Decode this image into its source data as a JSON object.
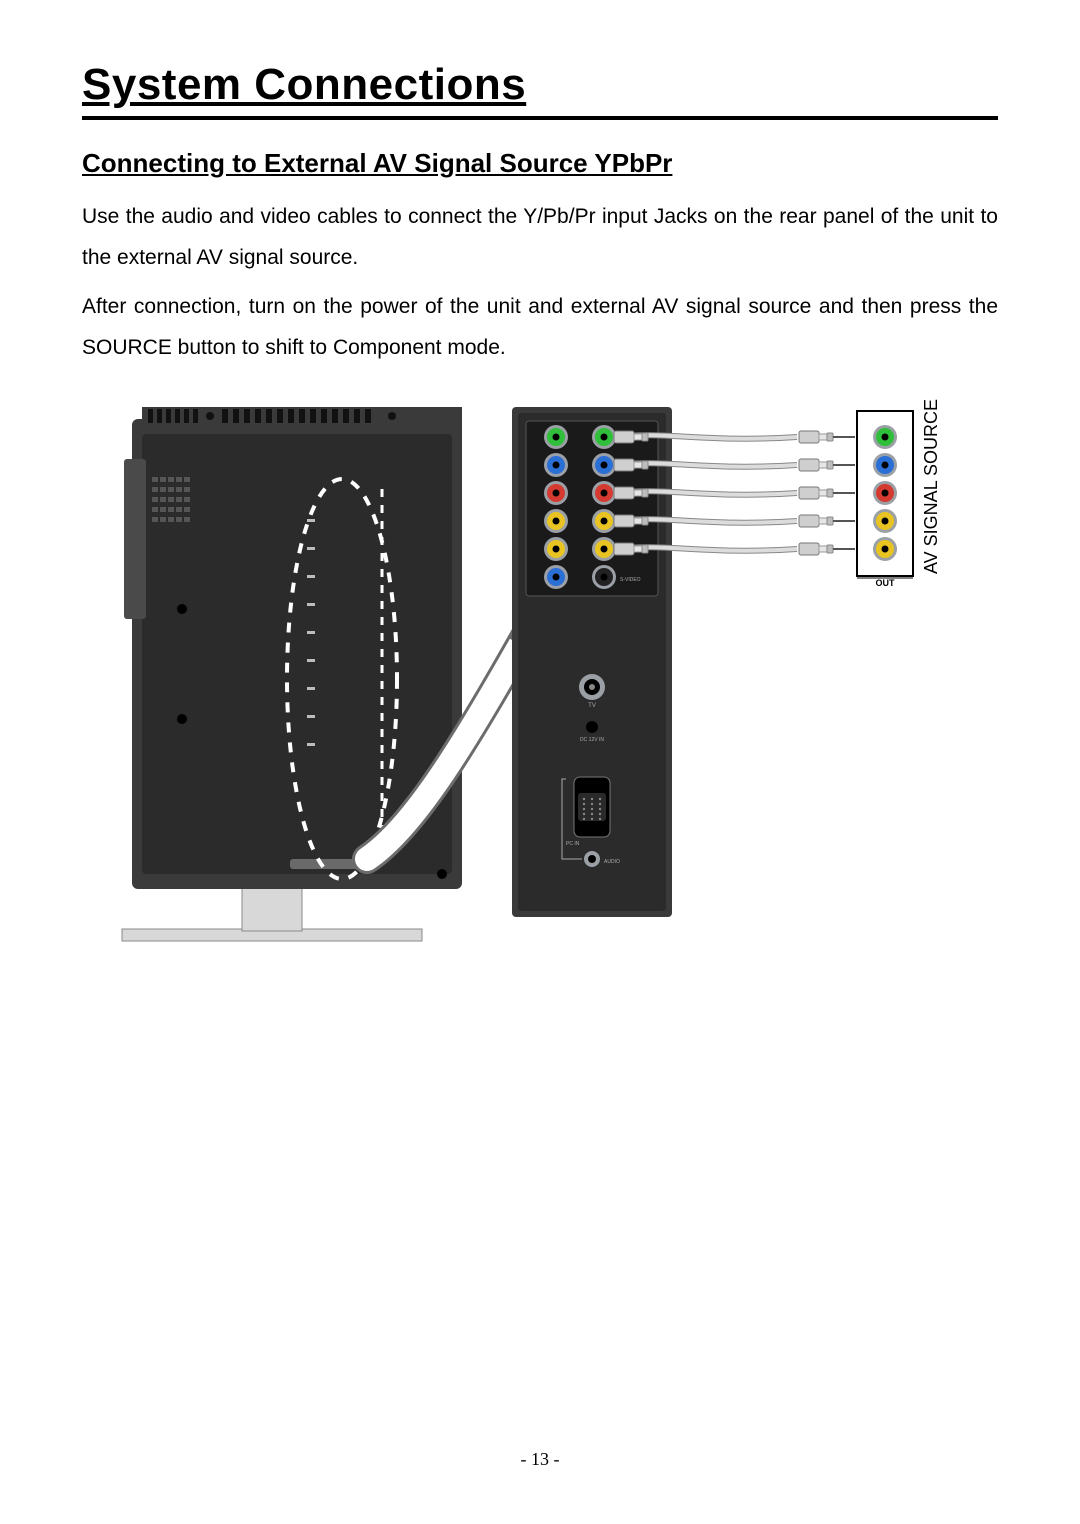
{
  "title": "System Connections",
  "subtitle": "Connecting to External AV Signal Source  YPbPr",
  "para1": "Use the audio and video cables to connect the Y/Pb/Pr input Jacks on the rear panel of the unit to the external AV signal source.",
  "para2": "After connection, turn on the power of the unit and external AV signal source and then press the SOURCE button to shift to Component mode.",
  "page_number": "- 13 -",
  "diagram": {
    "source_box_label": "AV SIGNAL SOURCE",
    "source_sub_label": "OUT",
    "tv_label": "TV",
    "dc_label": "DC 12V IN",
    "pc_label": "PC IN",
    "audio_label": "AUDIO",
    "svideo_label": "S-VIDEO",
    "colors": {
      "panel_dark": "#3a3a3a",
      "panel_darker": "#2b2b2b",
      "panel_black": "#1a1a1a",
      "bezel": "#4a4a4a",
      "stand": "#d8d8d8",
      "stand_edge": "#8a8a8a",
      "vent": "#111111",
      "jack_ring": "#9aa0a6",
      "jack_green": "#2fbf3a",
      "jack_blue": "#2a6fd6",
      "jack_red": "#d43a2f",
      "jack_yellow": "#e8c321",
      "jack_white": "#e8e8e8",
      "jack_black": "#222222",
      "cable_white": "#dcdcdc",
      "cable_edge": "#888888",
      "arrow_fill": "#ffffff",
      "arrow_stroke": "#6c6c6c",
      "dash": "#ffffff",
      "box_stroke": "#000000"
    },
    "tv_rear_jacks_left": [
      {
        "c": "jack_green"
      },
      {
        "c": "jack_blue"
      },
      {
        "c": "jack_red"
      },
      {
        "c": "jack_yellow"
      },
      {
        "c": "jack_yellow"
      },
      {
        "c": "jack_blue"
      }
    ],
    "tv_rear_jacks_right": [
      {
        "c": "jack_green"
      },
      {
        "c": "jack_blue"
      },
      {
        "c": "jack_red"
      },
      {
        "c": "jack_yellow"
      },
      {
        "c": "jack_yellow"
      },
      {
        "c": "jack_black"
      }
    ],
    "source_jacks": [
      {
        "c": "jack_green"
      },
      {
        "c": "jack_blue"
      },
      {
        "c": "jack_red"
      },
      {
        "c": "jack_yellow"
      },
      {
        "c": "jack_yellow"
      }
    ],
    "cable_rows": 5
  }
}
